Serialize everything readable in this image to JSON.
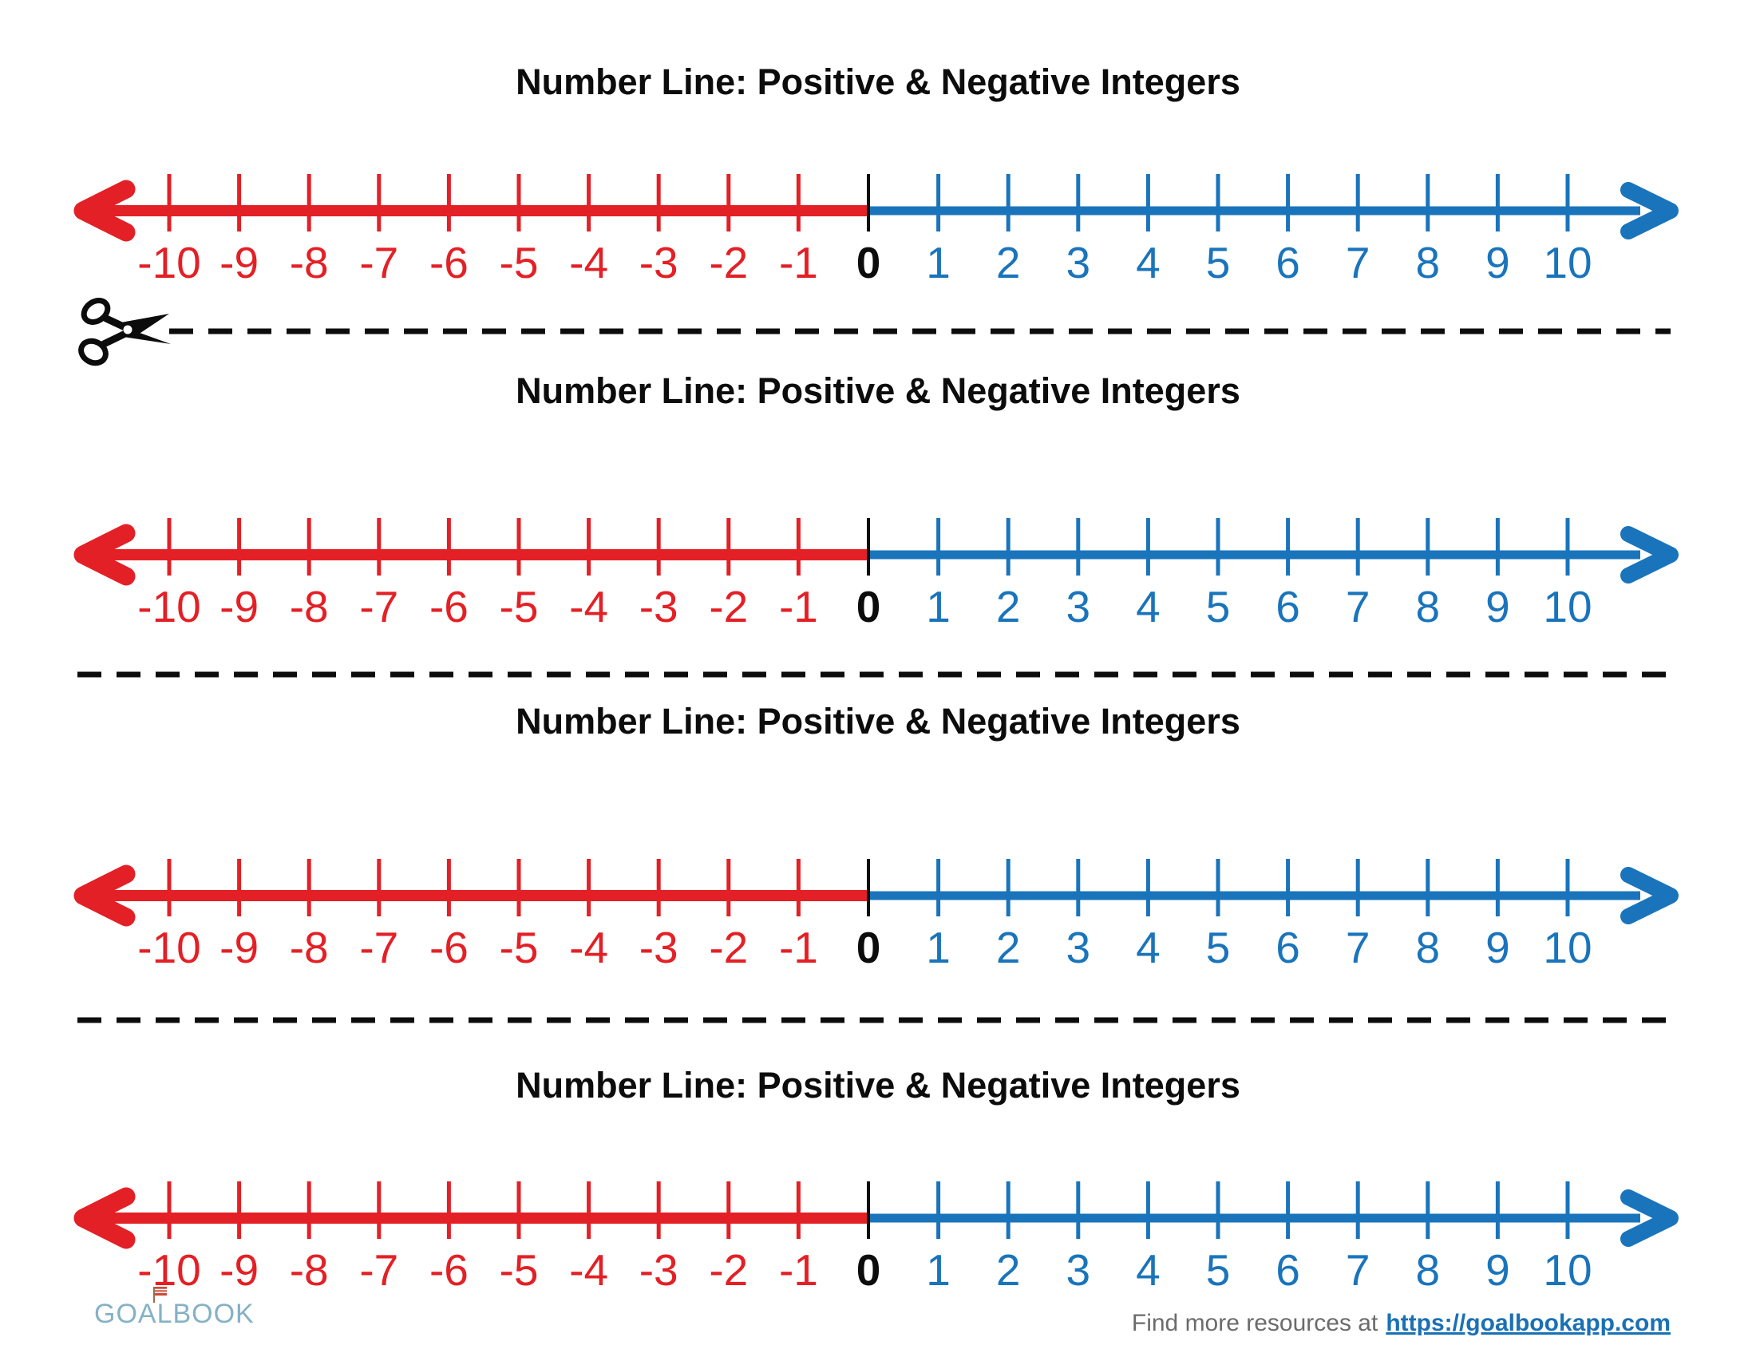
{
  "sections": [
    {
      "title": "Number Line: Positive & Negative Integers"
    },
    {
      "title": "Number Line: Positive & Negative Integers"
    },
    {
      "title": "Number Line: Positive & Negative Integers"
    },
    {
      "title": "Number Line: Positive & Negative Integers"
    }
  ],
  "number_line": {
    "min": -10,
    "max": 10,
    "tick_labels": [
      "-10",
      "-9",
      "-8",
      "-7",
      "-6",
      "-5",
      "-4",
      "-3",
      "-2",
      "-1",
      "0",
      "1",
      "2",
      "3",
      "4",
      "5",
      "6",
      "7",
      "8",
      "9",
      "10"
    ],
    "negative_color": "#e32026",
    "positive_color": "#1a74bb",
    "zero_color": "#0c0c0c"
  },
  "cut_line": {
    "style": "dashed",
    "color": "#0c0c0c",
    "scissors_icon": "scissors"
  },
  "footer": {
    "logo_text": "GOALBOOK",
    "logo_color": "#85b1c6",
    "flag_color": "#cf4a38",
    "text": "Find more resources at",
    "link_text": "https://goalbookapp.com",
    "link_color": "#1a70b5"
  }
}
